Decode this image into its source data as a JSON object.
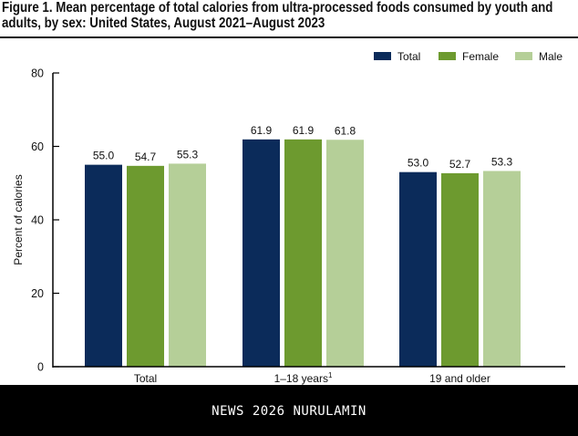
{
  "chart_data": {
    "type": "bar",
    "title_lines": [
      "Figure 1. Mean percentage of total calories from ultra-processed foods consumed by youth and",
      "adults, by sex: United States, August 2021–August 2023"
    ],
    "categories": [
      "Total",
      "1–18 years",
      "19 and older"
    ],
    "category_superscripts": [
      "",
      "1",
      ""
    ],
    "series": [
      {
        "name": "Total",
        "color": "#0b2b5a",
        "values": [
          55.0,
          61.9,
          53.0
        ]
      },
      {
        "name": "Female",
        "color": "#6d9a2f",
        "values": [
          54.7,
          61.9,
          52.7
        ]
      },
      {
        "name": "Male",
        "color": "#b5cf98",
        "values": [
          55.3,
          61.8,
          53.3
        ]
      }
    ],
    "data_labels": [
      [
        "55.0",
        "61.9",
        "53.0"
      ],
      [
        "54.7",
        "61.9",
        "52.7"
      ],
      [
        "55.3",
        "61.8",
        "53.3"
      ]
    ],
    "xlabel": "",
    "ylabel": "Percent of calories",
    "ylim": [
      0,
      80
    ],
    "yticks": [
      0,
      20,
      40,
      60,
      80
    ],
    "grid": false,
    "legend_position": "top-right"
  },
  "footer": {
    "watermark": "NEWS 2026 NURULAMIN"
  }
}
